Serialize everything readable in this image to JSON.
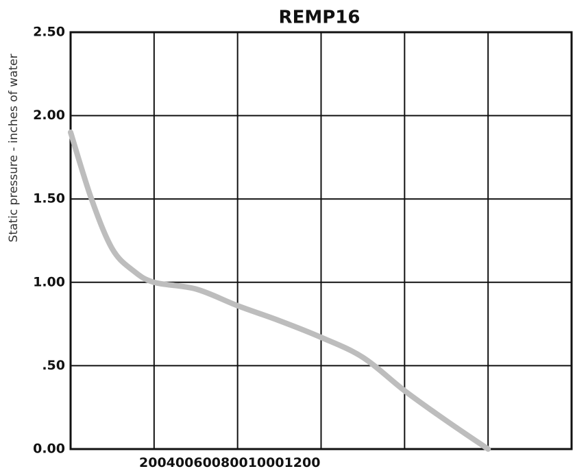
{
  "chart_data": {
    "type": "line",
    "title": "REMP16",
    "y_label": "Static pressure - inches of water",
    "x": [
      0,
      50,
      100,
      150,
      200,
      300,
      400,
      500,
      600,
      700,
      800,
      900,
      1000
    ],
    "series": [
      {
        "name": "REMP16",
        "color": "#bdbdbd",
        "values": [
          1.9,
          1.5,
          1.2,
          1.07,
          1.0,
          0.96,
          0.86,
          0.77,
          0.67,
          0.55,
          0.35,
          0.17,
          0
        ]
      }
    ],
    "xlim": [
      0,
      1200
    ],
    "xticks": [
      200,
      400,
      600,
      800,
      1000,
      1200
    ],
    "ylim": [
      0,
      2.5
    ],
    "yticks": [
      {
        "value": 0,
        "label": "0.00"
      },
      {
        "value": 0.5,
        "label": ".50"
      },
      {
        "value": 1,
        "label": "1.00"
      },
      {
        "value": 1.5,
        "label": "1.50"
      },
      {
        "value": 2,
        "label": "2.00"
      },
      {
        "value": 2.5,
        "label": "2.50"
      }
    ],
    "grid": true
  }
}
